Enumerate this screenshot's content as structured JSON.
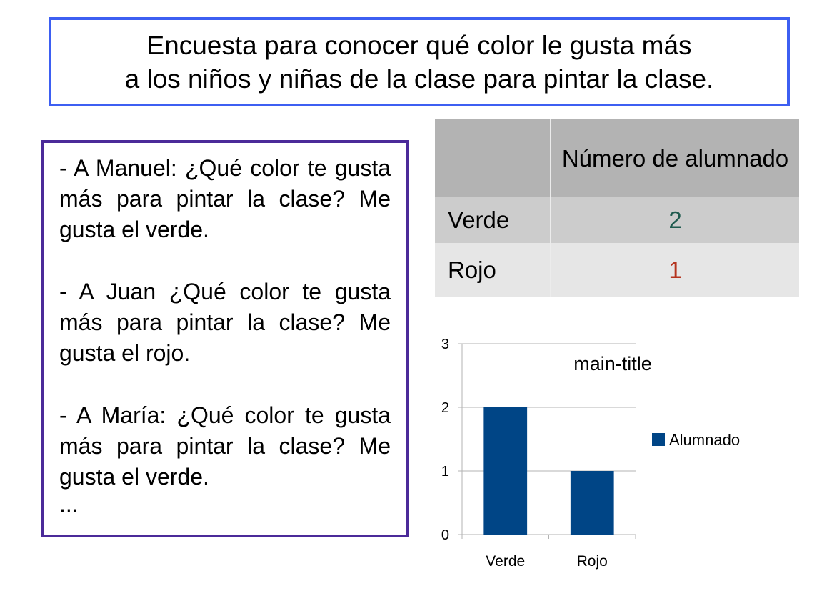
{
  "title": {
    "line1": "Encuesta para conocer qué color le gusta más",
    "line2": "a los niños y niñas de la clase para pintar la clase."
  },
  "dialog": {
    "items": [
      "-  A Manuel: ¿Qué color te gusta más para pintar la clase? Me gusta el verde.",
      "-   A Juan ¿Qué color te gusta más para pintar la clase? Me gusta el rojo.",
      "-   A María: ¿Qué color te gusta más para pintar la clase? Me gusta el verde."
    ],
    "ellipsis": "..."
  },
  "table": {
    "header": "Número de alumnado",
    "rows": [
      {
        "label": "Verde",
        "value": "2",
        "color": "#1e5a4e"
      },
      {
        "label": "Rojo",
        "value": "1",
        "color": "#b5341f"
      }
    ]
  },
  "chart_data": {
    "type": "bar",
    "title": "main-title",
    "categories": [
      "Verde",
      "Rojo"
    ],
    "series": [
      {
        "name": "Alumnado",
        "values": [
          2,
          1
        ],
        "color": "#004586"
      }
    ],
    "ylim": [
      0,
      3
    ],
    "yticks": [
      "0",
      "1",
      "2",
      "3"
    ],
    "grid": true,
    "legend": "right"
  }
}
